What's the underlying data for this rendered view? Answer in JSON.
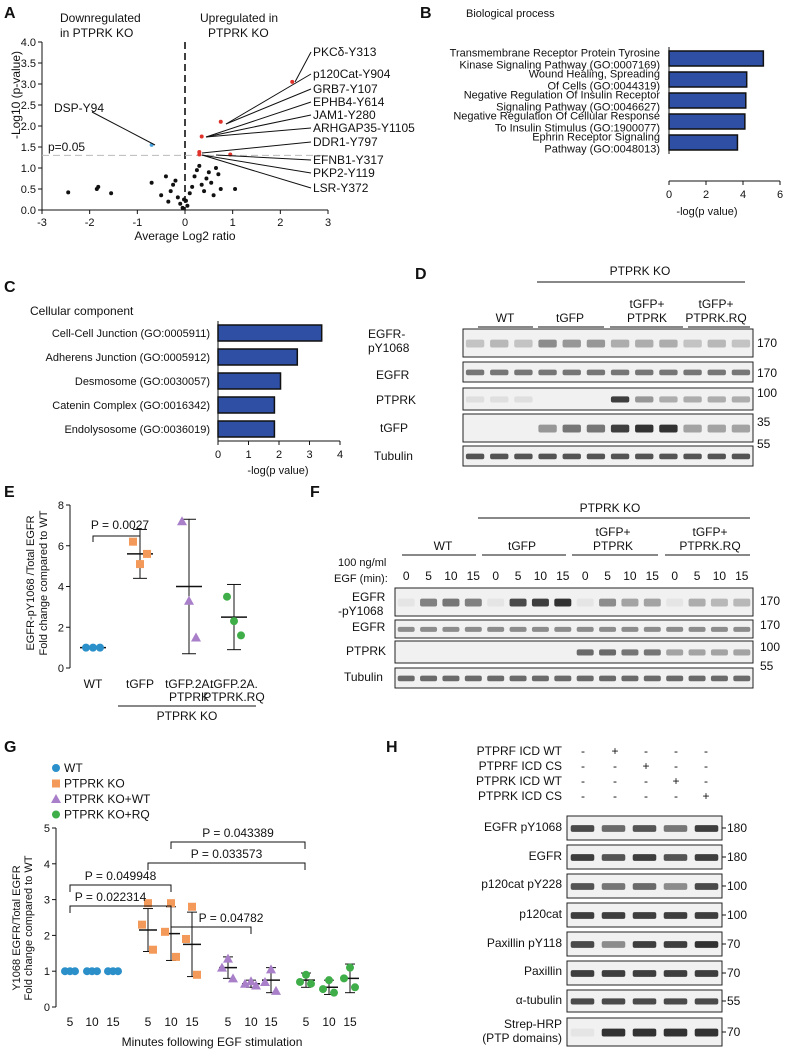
{
  "panels": {
    "A": "A",
    "B": "B",
    "C": "C",
    "D": "D",
    "E": "E",
    "F": "F",
    "G": "G",
    "H": "H"
  },
  "panel_a": {
    "title_left_1": "Downregulated",
    "title_left_2": "in PTPRK KO",
    "title_right_1": "Upregulated in",
    "title_right_2": "PTPRK KO",
    "ylabel": "-Log10 (p-value)",
    "xlabel": "Average Log2 ratio",
    "pline": "p=0.05",
    "xticks": [
      "-3",
      "-2",
      "-1",
      "0",
      "1",
      "2",
      "3"
    ],
    "yticks": [
      "0.0",
      "0.5",
      "1.0",
      "1.5",
      "2.0",
      "2.5",
      "3.0",
      "3.5",
      "4.0"
    ],
    "labels": [
      "PKCδ-Y313",
      "p120Cat-Y904",
      "GRB7-Y107",
      "EPHB4-Y614",
      "JAM1-Y280",
      "ARHGAP35-Y1105",
      "DDR1-Y797",
      "EFNB1-Y317",
      "PKP2-Y119",
      "LSR-Y372",
      "DSP-Y94"
    ]
  },
  "panel_b": {
    "title": "Biological process",
    "xlabel": "-log(p value)",
    "xticks": [
      "0",
      "2",
      "4",
      "6"
    ],
    "terms": [
      [
        "Transmembrane Receptor Protein Tyrosine",
        "Kinase Signaling Pathway (GO:0007169)"
      ],
      [
        "Wound Healing, Spreading",
        "Of Cells (GO:0044319)"
      ],
      [
        "Negative Regulation Of Insulin Receptor",
        "Signaling Pathway (GO:0046627)"
      ],
      [
        "Negative Regulation Of Cellular Response",
        "To Insulin Stimulus (GO:1900077)"
      ],
      [
        "Ephrin Receptor Signaling",
        "Pathway (GO:0048013)"
      ]
    ]
  },
  "panel_c": {
    "title": "Cellular component",
    "xlabel": "-log(p value)",
    "xticks": [
      "0",
      "1",
      "2",
      "3",
      "4"
    ],
    "terms": [
      "Cell-Cell Junction (GO:0005911)",
      "Adherens Junction (GO:0005912)",
      "Desmosome (GO:0030057)",
      "Catenin Complex (GO:0016342)",
      "Endolysosome (GO:0036019)"
    ]
  },
  "panel_d": {
    "header": "PTPRK KO",
    "groups": [
      "WT",
      "tGFP",
      "tGFP+",
      "PTPRK",
      "tGFP+",
      "PTPRK.RQ"
    ],
    "rows": [
      "EGFR-",
      "pY1068",
      "EGFR",
      "PTPRK",
      "tGFP",
      "Tubulin"
    ],
    "mw": [
      "170",
      "170",
      "100",
      "35",
      "55"
    ]
  },
  "panel_e": {
    "ylabel_1": "EGFR-pY1068 /Total EGFR",
    "ylabel_2": "Fold change compared to WT",
    "pval": "P = 0.0027",
    "yticks": [
      "0",
      "2",
      "4",
      "6",
      "8"
    ],
    "xcats": [
      "WT",
      "tGFP",
      "tGFP.2A.",
      "PTPRK",
      "tGFP.2A.",
      "PTPRK.RQ"
    ],
    "group": "PTPRK KO"
  },
  "panel_f": {
    "header": "PTPRK KO",
    "groups": [
      "WT",
      "tGFP",
      "tGFP+",
      "PTPRK",
      "tGFP+",
      "PTPRK.RQ"
    ],
    "egf_1": "100 ng/ml",
    "egf_2": "EGF (min):",
    "times": [
      "0",
      "5",
      "10",
      "15",
      "0",
      "5",
      "10",
      "15",
      "0",
      "5",
      "10",
      "15",
      "0",
      "5",
      "10",
      "15"
    ],
    "rows": [
      "EGFR",
      "-pY1068",
      "EGFR",
      "PTPRK",
      "Tubulin"
    ],
    "mw": [
      "170",
      "170",
      "100",
      "55"
    ]
  },
  "panel_g": {
    "legend": [
      "WT",
      "PTPRK KO",
      "PTPRK KO+WT",
      "PTPRK KO+RQ"
    ],
    "ylabel_1": "Y1068 EGFR/Total EGFR",
    "ylabel_2": "Fold change compared to WT",
    "xlabel": "Minutes following EGF stimulation",
    "yticks": [
      "0",
      "1",
      "2",
      "3",
      "4",
      "5"
    ],
    "xticks": [
      "5",
      "10",
      "15",
      "5",
      "10",
      "15",
      "5",
      "10",
      "15",
      "5",
      "10",
      "15"
    ],
    "pvals": [
      "P = 0.043389",
      "P = 0.033573",
      "P = 0.049948",
      "P = 0.022314",
      "P = 0.04782"
    ]
  },
  "panel_h": {
    "conditions": [
      "PTPRF ICD WT",
      "PTPRF ICD CS",
      "PTPRK ICD WT",
      "PTPRK ICD CS"
    ],
    "signs": [
      [
        "-",
        "+",
        "-",
        "-",
        "-"
      ],
      [
        "-",
        "-",
        "+",
        "-",
        "-"
      ],
      [
        "-",
        "-",
        "-",
        "+",
        "-"
      ],
      [
        "-",
        "-",
        "-",
        "-",
        "+"
      ]
    ],
    "rows": [
      "EGFR pY1068",
      "EGFR",
      "p120cat pY228",
      "p120cat",
      "Paxillin pY118",
      "Paxillin",
      "α-tubulin",
      "Strep-HRP",
      "(PTP domains)"
    ],
    "mw": [
      "180",
      "180",
      "100",
      "100",
      "70",
      "70",
      "55",
      "70"
    ]
  },
  "colors": {
    "bar": "#2e4fa3",
    "up": "#e0312b",
    "down": "#4aa3df",
    "wt": "#2b8fc9",
    "ko": "#f39a5a",
    "kowt": "#a97fc9",
    "korq": "#3fae49"
  },
  "chart_data": [
    {
      "type": "scatter",
      "title": "",
      "xlabel": "Average Log2 ratio",
      "ylabel": "-Log10 (p-value)",
      "xlim": [
        -3,
        3
      ],
      "ylim": [
        0,
        4
      ],
      "series": [
        {
          "name": "",
          "points": [
            [
              -2.45,
              0.42
            ],
            [
              -1.85,
              0.5
            ],
            [
              -1.82,
              0.55
            ],
            [
              -1.55,
              0.4
            ],
            [
              -0.7,
              0.65
            ],
            [
              -0.5,
              0.35
            ],
            [
              -0.4,
              0.8
            ],
            [
              -0.3,
              0.45
            ],
            [
              -0.25,
              0.6
            ],
            [
              -0.2,
              0.7
            ],
            [
              -0.15,
              0.3
            ],
            [
              -0.1,
              0.15
            ],
            [
              -0.05,
              0.05
            ],
            [
              0.02,
              0.22
            ],
            [
              0.1,
              0.4
            ],
            [
              0.15,
              0.55
            ],
            [
              0.2,
              0.8
            ],
            [
              0.25,
              0.95
            ],
            [
              0.3,
              1.05
            ],
            [
              0.35,
              0.6
            ],
            [
              0.4,
              0.45
            ],
            [
              0.45,
              0.75
            ],
            [
              0.5,
              0.9
            ],
            [
              0.55,
              0.65
            ],
            [
              0.6,
              0.35
            ],
            [
              0.65,
              1.0
            ],
            [
              0.7,
              0.85
            ],
            [
              0.75,
              0.5
            ],
            [
              1.05,
              0.5
            ],
            [
              -0.35,
              0.2
            ],
            [
              0.05,
              0.1
            ],
            [
              -0.02,
              0.25
            ]
          ]
        },
        {
          "name": "",
          "points": [
            [
              2.25,
              3.05
            ],
            [
              0.75,
              2.1
            ],
            [
              0.35,
              1.75
            ],
            [
              0.3,
              1.38
            ],
            [
              0.3,
              1.32
            ],
            [
              0.95,
              1.32
            ]
          ]
        },
        {
          "name": "",
          "points": [
            [
              -0.7,
              1.55
            ]
          ]
        }
      ]
    },
    {
      "type": "bar",
      "title": "Biological process",
      "xlabel": "-log(p value)",
      "categories": [
        "Transmembrane Receptor Protein Tyrosine Kinase Signaling Pathway (GO:0007169)",
        "Wound Healing, Spreading Of Cells (GO:0044319)",
        "Negative Regulation Of Insulin Receptor Signaling Pathway (GO:0046627)",
        "Negative Regulation Of Cellular Response To Insulin Stimulus (GO:1900077)",
        "Ephrin Receptor Signaling Pathway (GO:0048013)"
      ],
      "values": [
        5.1,
        4.2,
        4.15,
        4.1,
        3.7
      ],
      "xlim": [
        0,
        6
      ]
    },
    {
      "type": "bar",
      "title": "Cellular component",
      "xlabel": "-log(p value)",
      "categories": [
        "Cell-Cell Junction (GO:0005911)",
        "Adherens Junction (GO:0005912)",
        "Desmosome (GO:0030057)",
        "Catenin Complex (GO:0016342)",
        "Endolysosome (GO:0036019)"
      ],
      "values": [
        3.4,
        2.6,
        2.05,
        1.85,
        1.85
      ],
      "xlim": [
        0,
        4
      ]
    },
    {
      "type": "scatter",
      "ylabel": "EGFR-pY1068 /Total EGFR Fold change compared to WT",
      "ylim": [
        0,
        8
      ],
      "categories": [
        "WT",
        "tGFP",
        "tGFP.2A.PTPRK",
        "tGFP.2A.PTPRK.RQ"
      ],
      "series": [
        {
          "name": "WT",
          "values": [
            1,
            1,
            1
          ],
          "mean": 1,
          "sd": 0
        },
        {
          "name": "tGFP",
          "values": [
            6.2,
            5.1,
            5.6
          ],
          "mean": 5.6,
          "sd": 1.2
        },
        {
          "name": "tGFP.2A.PTPRK",
          "values": [
            7.2,
            3.3,
            1.5
          ],
          "mean": 4.0,
          "sd": 3.3
        },
        {
          "name": "tGFP.2A.PTPRK.RQ",
          "values": [
            3.5,
            2.3,
            1.6
          ],
          "mean": 2.5,
          "sd": 1.6
        }
      ]
    },
    {
      "type": "scatter",
      "xlabel": "Minutes following EGF stimulation",
      "ylabel": "Y1068 EGFR/Total EGFR Fold change compared to WT",
      "ylim": [
        0,
        5
      ],
      "x": [
        "5",
        "10",
        "15"
      ],
      "series": [
        {
          "name": "WT",
          "mean": [
            1,
            1,
            1
          ],
          "sd": [
            0,
            0,
            0
          ],
          "points": [
            [
              1,
              1,
              1
            ],
            [
              1,
              1,
              1
            ],
            [
              1,
              1,
              1
            ]
          ]
        },
        {
          "name": "PTPRK KO",
          "mean": [
            2.15,
            2.05,
            1.75
          ],
          "sd": [
            0.6,
            0.75,
            0.9
          ],
          "points": [
            [
              2.9,
              2.3,
              1.6
            ],
            [
              2.9,
              2.1,
              1.4
            ],
            [
              2.8,
              1.9,
              0.9
            ]
          ]
        },
        {
          "name": "PTPRK KO+WT",
          "mean": [
            1.1,
            0.65,
            0.75
          ],
          "sd": [
            0.3,
            0.1,
            0.35
          ],
          "points": [
            [
              1.35,
              1.1,
              0.8
            ],
            [
              0.72,
              0.65,
              0.6
            ],
            [
              1.05,
              0.7,
              0.45
            ]
          ]
        },
        {
          "name": "PTPRK KO+RQ",
          "mean": [
            0.75,
            0.55,
            0.8
          ],
          "sd": [
            0.2,
            0.2,
            0.4
          ],
          "points": [
            [
              0.9,
              0.7,
              0.65
            ],
            [
              0.75,
              0.5,
              0.4
            ],
            [
              1.1,
              0.8,
              0.55
            ]
          ]
        }
      ]
    }
  ]
}
